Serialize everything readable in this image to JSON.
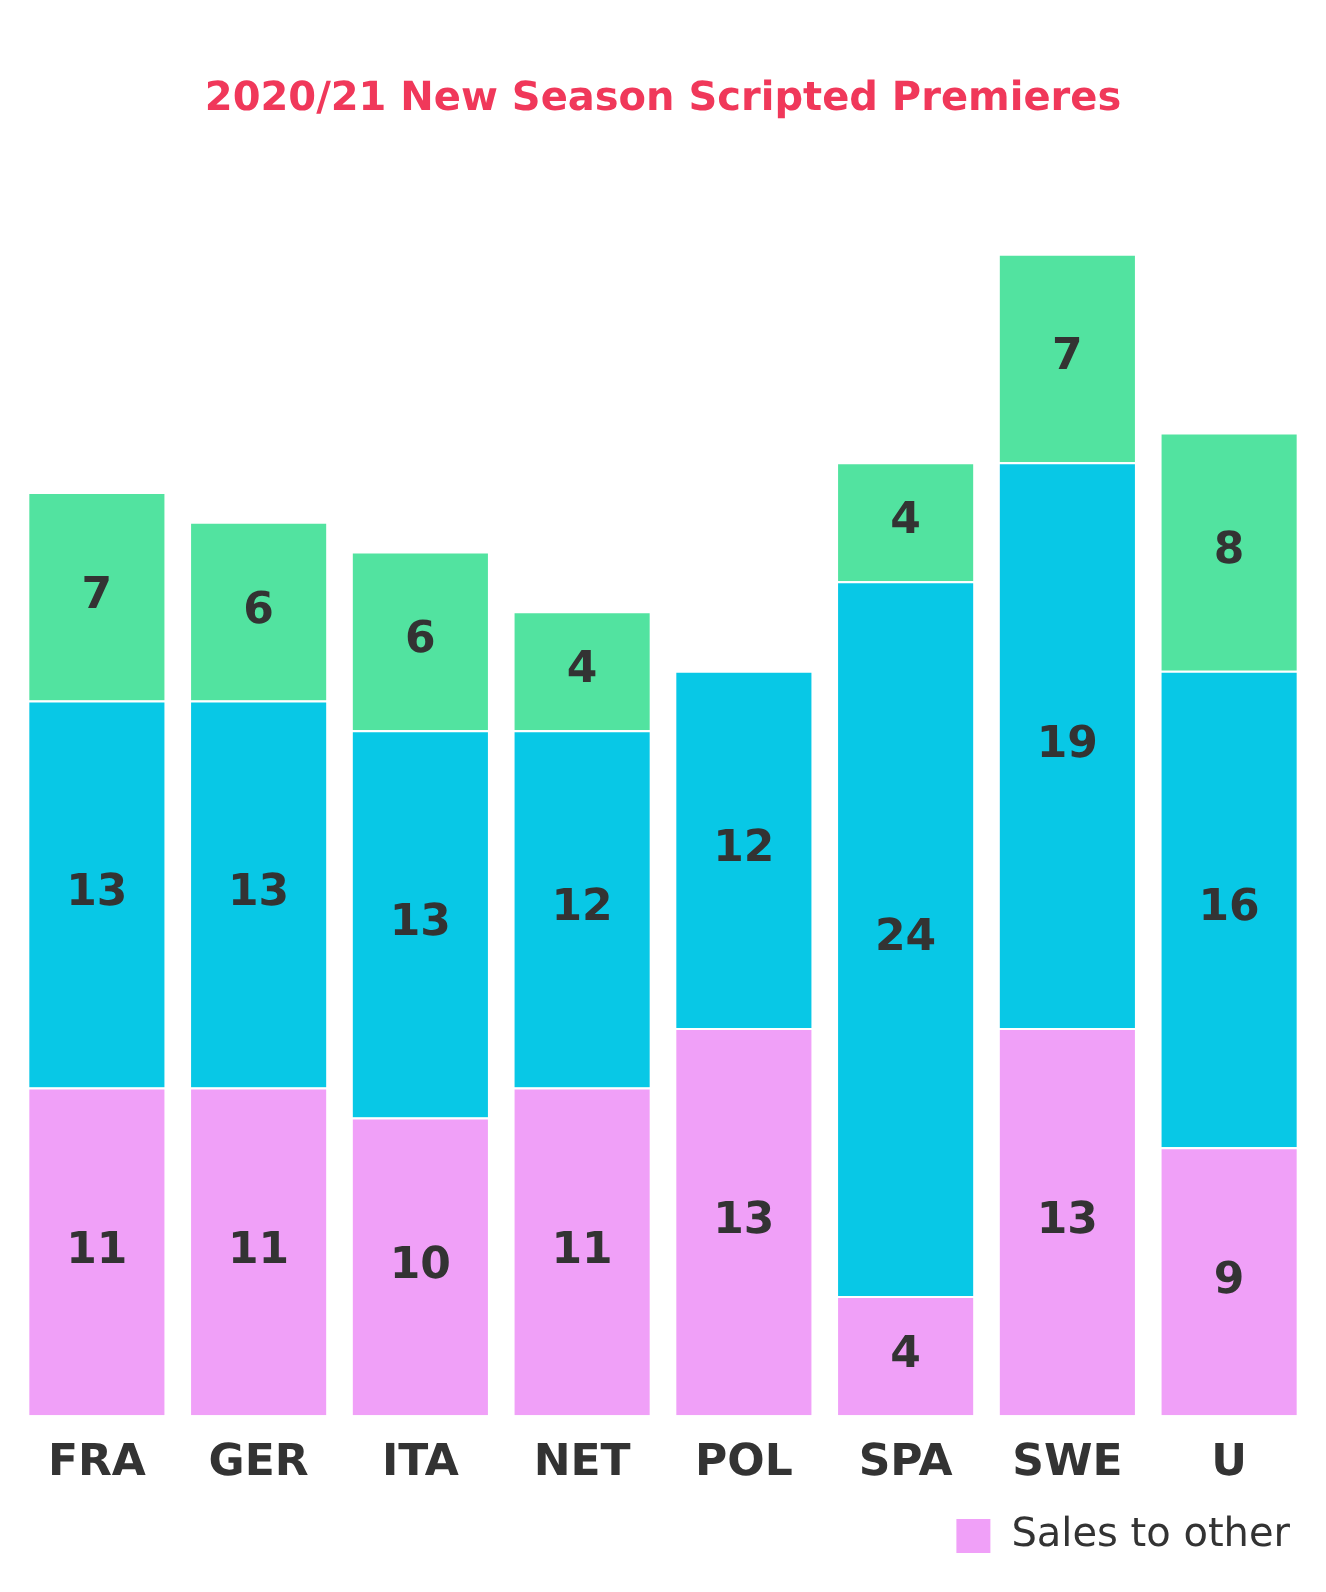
{
  "chart_data": {
    "type": "bar",
    "title": "2020/21 New Season Scripted Premieres",
    "categories": [
      "FRA",
      "GER",
      "ITA",
      "NET",
      "POL",
      "SPA",
      "SWE",
      "U"
    ],
    "stacked": true,
    "data_labels": true,
    "legend": "bottom right",
    "series": [
      {
        "name": "Sales to other",
        "color": "#f0a0f8",
        "values": [
          11,
          11,
          10,
          11,
          13,
          4,
          13,
          9
        ]
      },
      {
        "color": "#08c8e6",
        "values": [
          13,
          13,
          13,
          12,
          12,
          24,
          19,
          16
        ]
      },
      {
        "color": "#52e3a0",
        "values": [
          7,
          6,
          6,
          4,
          null,
          4,
          7,
          8
        ]
      }
    ]
  }
}
